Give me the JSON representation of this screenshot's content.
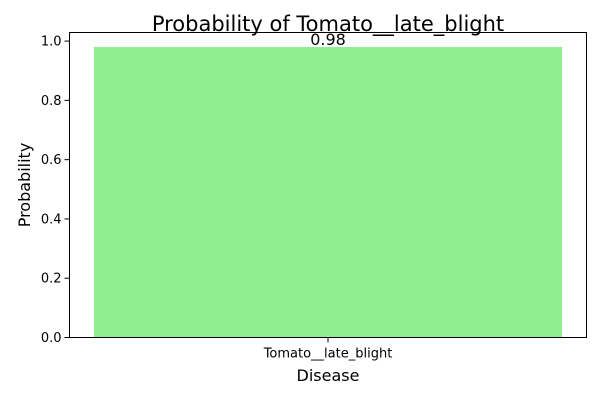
{
  "chart_data": {
    "type": "bar",
    "title": "Probability of Tomato__late_blight",
    "xlabel": "Disease",
    "ylabel": "Probability",
    "categories": [
      "Tomato__late_blight"
    ],
    "values": [
      0.98
    ],
    "data_labels": [
      "0.98"
    ],
    "ylim": [
      0,
      1.029
    ],
    "yticks": [
      0.0,
      0.2,
      0.4,
      0.6,
      0.8,
      1.0
    ],
    "ytick_labels": [
      "0.0",
      "0.2",
      "0.4",
      "0.6",
      "0.8",
      "1.0"
    ],
    "grid": false,
    "bar_color": "#90ee90",
    "axis_color": "#000000"
  }
}
